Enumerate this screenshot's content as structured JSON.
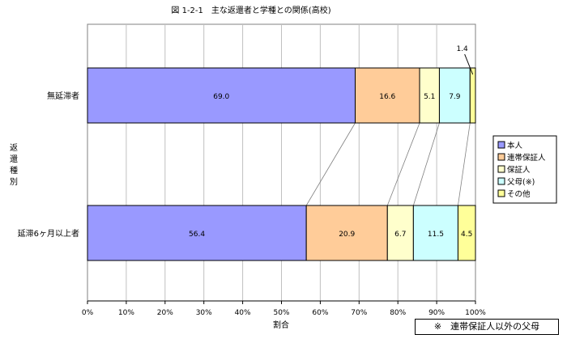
{
  "chart_data": {
    "type": "bar",
    "orientation": "horizontal",
    "stacked": true,
    "title": "図 1-2-1　主な返還者と学種との関係(高校)",
    "xlabel": "割合",
    "ylabel": "返還種別",
    "xlim": [
      0,
      100
    ],
    "x_ticks": [
      "0%",
      "10%",
      "20%",
      "30%",
      "40%",
      "50%",
      "60%",
      "70%",
      "80%",
      "90%",
      "100%"
    ],
    "grid": true,
    "categories": [
      "無延滞者",
      "延滞6ヶ月以上者"
    ],
    "series": [
      {
        "name": "本人",
        "color": "#9999ff",
        "values": [
          69.0,
          56.4
        ],
        "labels": [
          "69.0",
          "56.4"
        ]
      },
      {
        "name": "連帯保証人",
        "color": "#ffcc99",
        "values": [
          16.6,
          20.9
        ],
        "labels": [
          "16.6",
          "20.9"
        ]
      },
      {
        "name": "保証人",
        "color": "#ffffcc",
        "values": [
          5.1,
          6.7
        ],
        "labels": [
          "5.1",
          "6.7"
        ]
      },
      {
        "name": "父母(※)",
        "color": "#ccffff",
        "values": [
          7.9,
          11.5
        ],
        "labels": [
          "7.9",
          "11.5"
        ]
      },
      {
        "name": "その他",
        "color": "#ffff99",
        "values": [
          1.4,
          4.5
        ],
        "labels": [
          "1.4",
          "4.5"
        ]
      }
    ],
    "legend_position": "right",
    "note": "※　連帯保証人以外の父母"
  }
}
